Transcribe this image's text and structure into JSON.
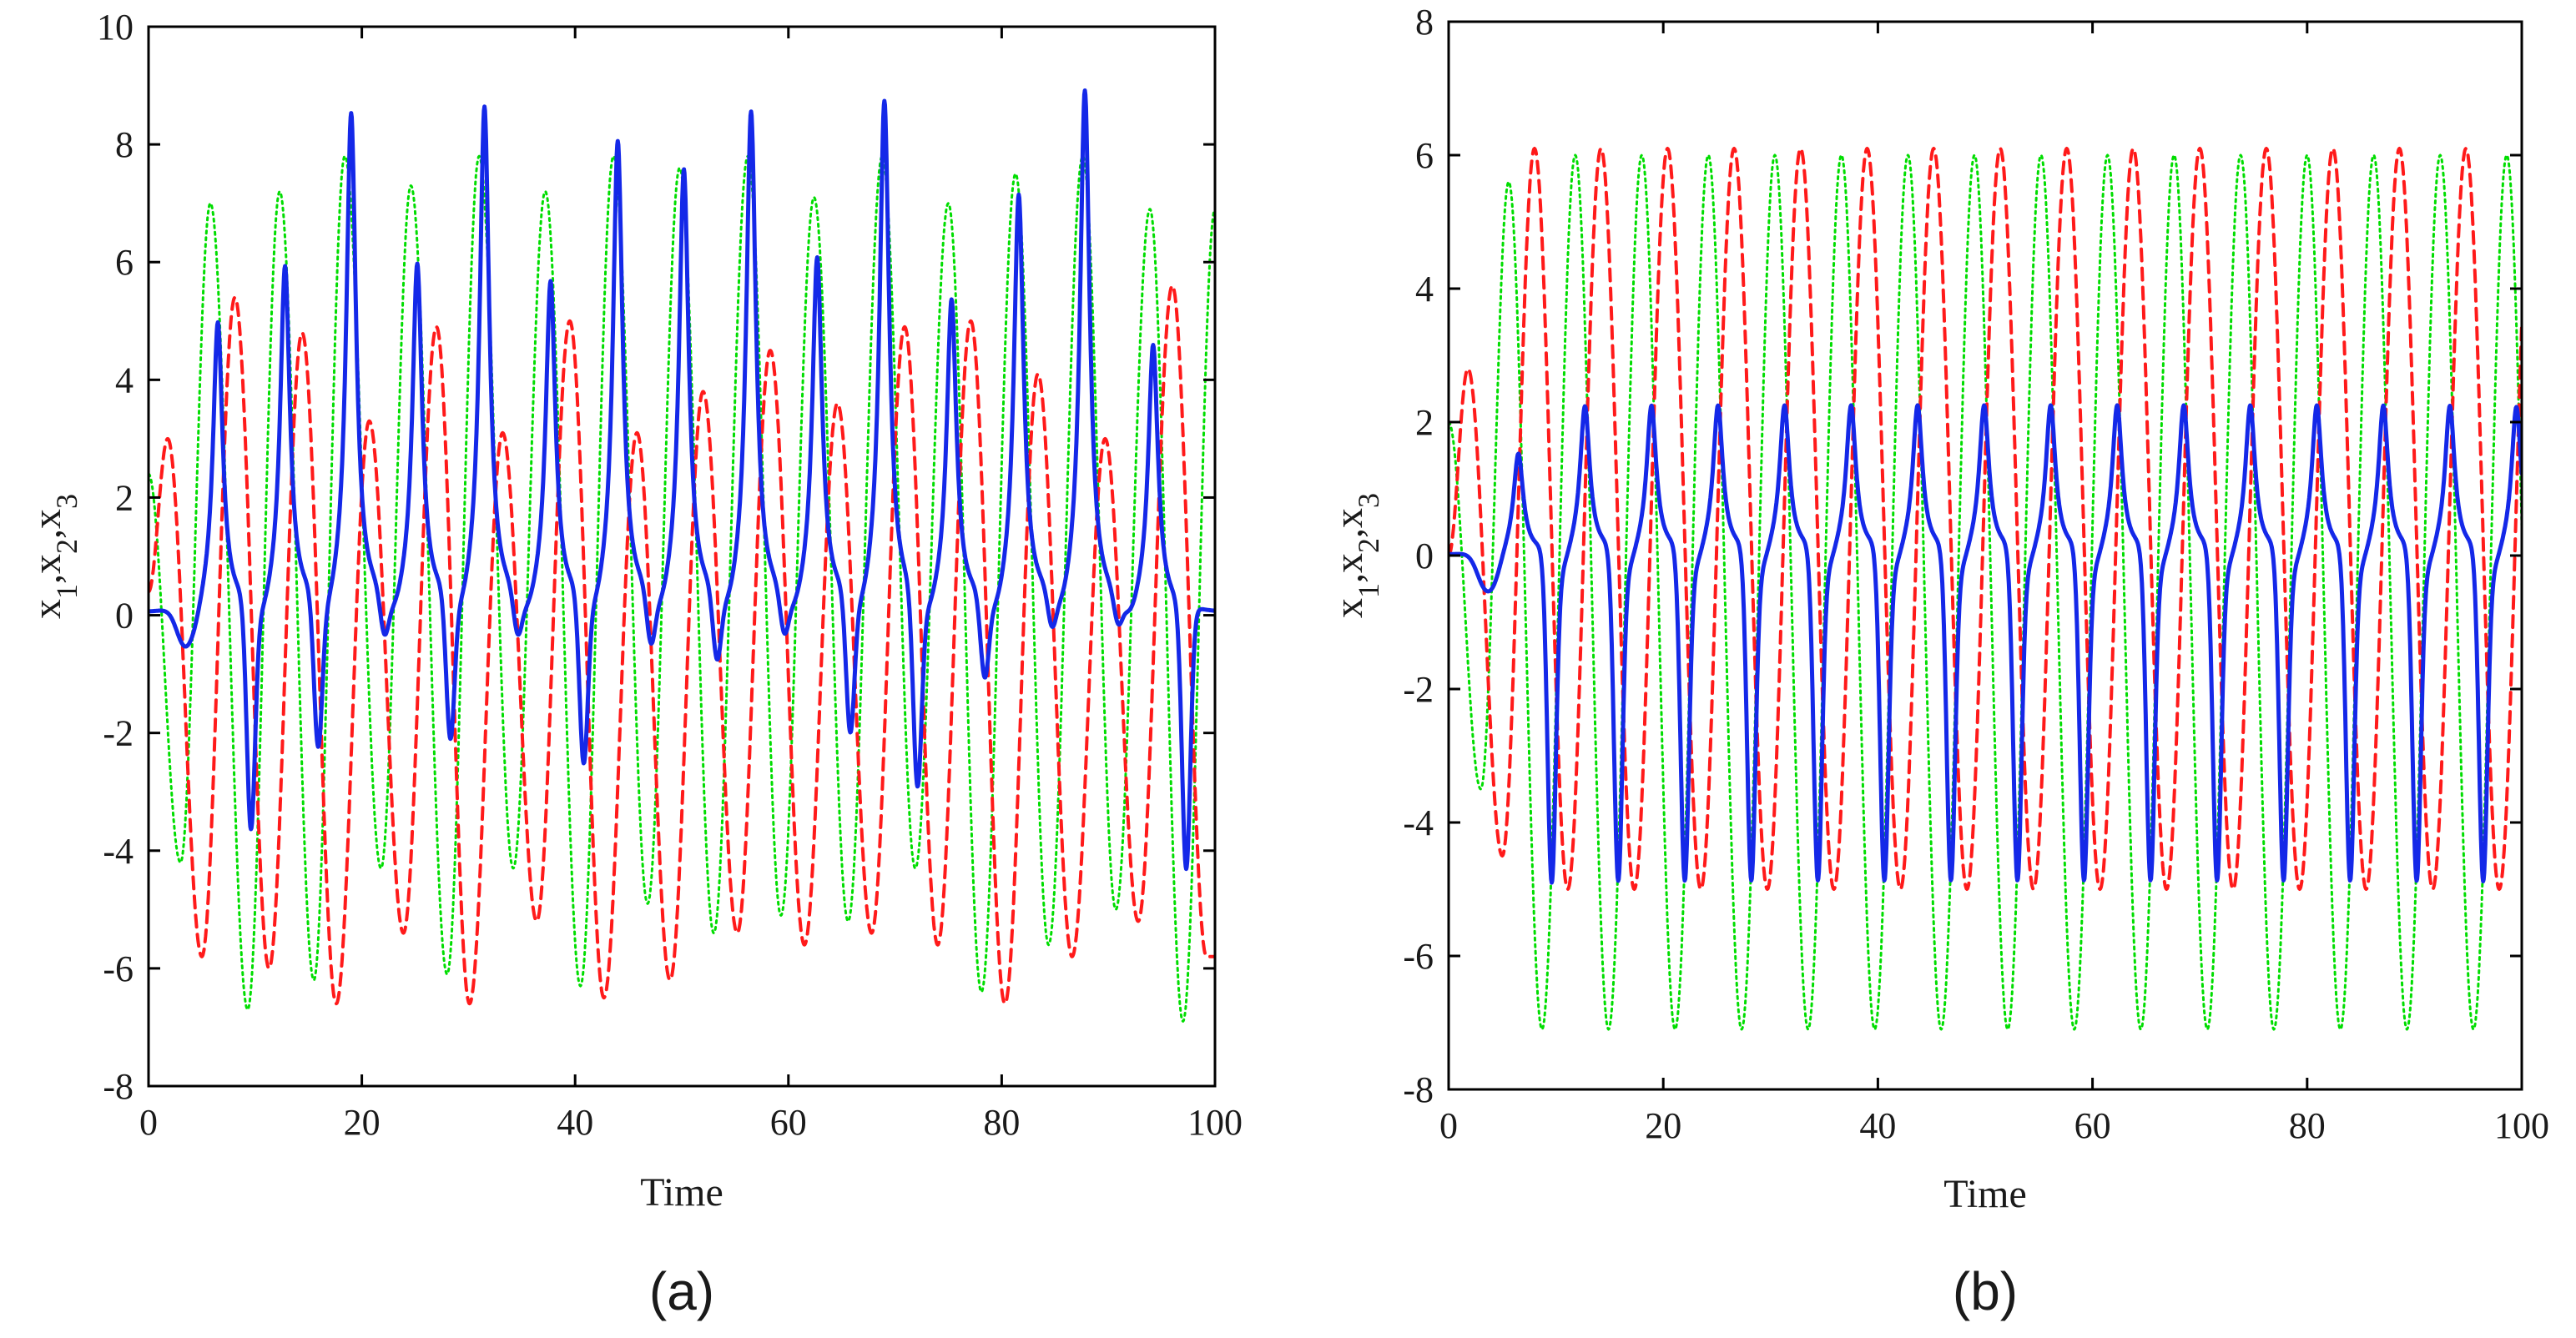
{
  "chart_data": [
    {
      "type": "line",
      "panel_label": "(a)",
      "xlabel": "Time",
      "ylabel_parts": {
        "x1": "x",
        "s1": "1",
        "x2": ",x",
        "s2": "2",
        "x3": ",x",
        "s3": "3"
      },
      "xlim": [
        0,
        100
      ],
      "ylim": [
        -8,
        10
      ],
      "xticks": [
        0,
        20,
        40,
        60,
        80,
        100
      ],
      "yticks": [
        -8,
        -6,
        -4,
        -2,
        0,
        2,
        4,
        6,
        8,
        10
      ],
      "regime": "chaotic",
      "series": [
        {
          "name": "x1",
          "color": "#00dd00",
          "style": "dotted",
          "peaks": [
            [
              5.8,
              7.0
            ],
            [
              12.3,
              7.2
            ],
            [
              18.4,
              7.8
            ],
            [
              24.6,
              7.3
            ],
            [
              31.0,
              7.8
            ],
            [
              37.2,
              7.2
            ],
            [
              43.6,
              7.8
            ],
            [
              49.8,
              7.6
            ],
            [
              56.2,
              7.8
            ],
            [
              62.4,
              7.1
            ],
            [
              68.8,
              7.8
            ],
            [
              75.0,
              7.0
            ],
            [
              81.3,
              7.5
            ],
            [
              87.6,
              7.8
            ],
            [
              93.9,
              6.9
            ],
            [
              100.0,
              6.9
            ]
          ],
          "troughs": [
            [
              3.0,
              -4.2
            ],
            [
              9.3,
              -6.7
            ],
            [
              15.5,
              -6.2
            ],
            [
              21.8,
              -4.3
            ],
            [
              28.0,
              -6.1
            ],
            [
              34.2,
              -4.3
            ],
            [
              40.5,
              -6.3
            ],
            [
              46.8,
              -4.9
            ],
            [
              53.0,
              -5.4
            ],
            [
              59.3,
              -5.1
            ],
            [
              65.6,
              -5.2
            ],
            [
              71.9,
              -4.3
            ],
            [
              78.1,
              -6.4
            ],
            [
              84.4,
              -5.6
            ],
            [
              90.7,
              -5.0
            ],
            [
              97.0,
              -6.9
            ]
          ]
        },
        {
          "name": "x2",
          "color": "#ff1a1a",
          "style": "dashed",
          "peaks": [
            [
              1.8,
              3.0
            ],
            [
              8.1,
              5.4
            ],
            [
              14.4,
              4.8
            ],
            [
              20.7,
              3.3
            ],
            [
              27.0,
              4.9
            ],
            [
              33.2,
              3.1
            ],
            [
              39.5,
              5.0
            ],
            [
              45.8,
              3.1
            ],
            [
              52.0,
              3.8
            ],
            [
              58.3,
              4.5
            ],
            [
              64.6,
              3.6
            ],
            [
              70.9,
              4.9
            ],
            [
              77.1,
              5.0
            ],
            [
              83.4,
              4.1
            ],
            [
              89.7,
              3.0
            ],
            [
              96.0,
              5.6
            ]
          ],
          "troughs": [
            [
              5.0,
              -5.8
            ],
            [
              11.3,
              -6.0
            ],
            [
              17.6,
              -6.6
            ],
            [
              23.9,
              -5.4
            ],
            [
              30.1,
              -6.6
            ],
            [
              36.4,
              -5.2
            ],
            [
              42.7,
              -6.5
            ],
            [
              48.9,
              -6.2
            ],
            [
              55.2,
              -5.4
            ],
            [
              61.5,
              -5.6
            ],
            [
              67.8,
              -5.4
            ],
            [
              74.0,
              -5.6
            ],
            [
              80.3,
              -6.6
            ],
            [
              86.6,
              -5.8
            ],
            [
              92.8,
              -5.2
            ],
            [
              99.2,
              -5.8
            ]
          ]
        },
        {
          "name": "x3",
          "color": "#1428e8",
          "style": "solid",
          "pulses": [
            [
              6.5,
              4.9,
              -3.9
            ],
            [
              12.8,
              5.8,
              -2.6
            ],
            [
              19.0,
              8.4,
              -0.7
            ],
            [
              25.2,
              5.8,
              -2.5
            ],
            [
              31.5,
              8.5,
              -0.7
            ],
            [
              37.7,
              5.5,
              -2.9
            ],
            [
              44.0,
              7.9,
              -0.9
            ],
            [
              50.2,
              7.4,
              -1.2
            ],
            [
              56.5,
              8.4,
              -0.7
            ],
            [
              62.7,
              5.9,
              -2.4
            ],
            [
              69.0,
              8.6,
              -3.3
            ],
            [
              75.3,
              5.2,
              -1.4
            ],
            [
              81.6,
              7.0,
              -0.6
            ],
            [
              87.8,
              8.8,
              -0.5
            ],
            [
              94.2,
              4.5,
              -4.5
            ]
          ]
        }
      ]
    },
    {
      "type": "line",
      "panel_label": "(b)",
      "xlabel": "Time",
      "ylabel_parts": {
        "x1": "x",
        "s1": "1",
        "x2": ",x",
        "s2": "2",
        "x3": ",x",
        "s3": "3"
      },
      "xlim": [
        0,
        100
      ],
      "ylim": [
        -8,
        8
      ],
      "xticks": [
        0,
        20,
        40,
        60,
        80,
        100
      ],
      "yticks": [
        -8,
        -6,
        -4,
        -2,
        0,
        2,
        4,
        6,
        8
      ],
      "regime": "periodic",
      "period": 6.2,
      "series": [
        {
          "name": "x1",
          "color": "#00dd00",
          "style": "dotted",
          "peak": 6.0,
          "trough": -7.1,
          "first_peak": 5.6,
          "first_trough": -3.5
        },
        {
          "name": "x2",
          "color": "#ff1a1a",
          "style": "dashed",
          "peak": 6.1,
          "trough": -5.0,
          "first_peak": 2.8,
          "first_trough": -4.5
        },
        {
          "name": "x3",
          "color": "#1428e8",
          "style": "solid",
          "peak": 2.2,
          "trough": -4.9,
          "first_peak": 1.5,
          "initial_dip": -0.45
        }
      ]
    }
  ]
}
